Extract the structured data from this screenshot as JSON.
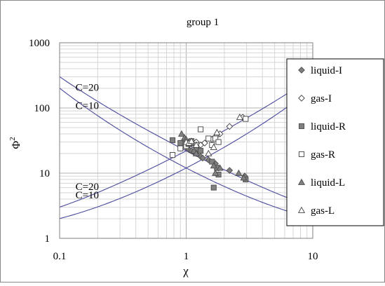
{
  "chart_data": {
    "type": "scatter",
    "title": "group 1",
    "xlabel": "χ",
    "ylabel": "Φ",
    "ylabel_sup": "2",
    "x_scale": "log",
    "y_scale": "log",
    "xlim": [
      0.1,
      10
    ],
    "ylim": [
      1,
      1000
    ],
    "x_ticks": [
      "0.1",
      "1",
      "10"
    ],
    "y_ticks": [
      "1",
      "10",
      "100",
      "1000"
    ],
    "grid": "major and minor (log)",
    "legend_position": "right",
    "curves": [
      {
        "C": 20,
        "label": "C=20",
        "branch": "liquid",
        "formula": "1 + C/χ + 1/χ^2"
      },
      {
        "C": 10,
        "label": "C=10",
        "branch": "liquid",
        "formula": "1 + C/χ + 1/χ^2"
      },
      {
        "C": 20,
        "label": "C=20",
        "branch": "gas",
        "formula": "1 + C·χ + χ^2"
      },
      {
        "C": 10,
        "label": "C=10",
        "branch": "gas",
        "formula": "1 + C·χ + χ^2"
      }
    ],
    "series": [
      {
        "name": "liquid-I",
        "marker": "diamond-filled",
        "points": [
          [
            1.0,
            25
          ],
          [
            1.05,
            23
          ],
          [
            1.1,
            22
          ],
          [
            1.15,
            21
          ],
          [
            1.2,
            20
          ],
          [
            1.3,
            18
          ],
          [
            1.35,
            17
          ],
          [
            1.5,
            16
          ],
          [
            1.7,
            14
          ],
          [
            1.8,
            12
          ],
          [
            2.2,
            11
          ],
          [
            2.9,
            9
          ]
        ]
      },
      {
        "name": "gas-I",
        "marker": "diamond-open",
        "points": [
          [
            1.05,
            27
          ],
          [
            1.1,
            28
          ],
          [
            1.15,
            29
          ],
          [
            1.2,
            30
          ],
          [
            1.3,
            27
          ],
          [
            1.4,
            29
          ],
          [
            1.6,
            33
          ],
          [
            1.75,
            38
          ],
          [
            1.85,
            40
          ],
          [
            2.2,
            52
          ],
          [
            2.8,
            72
          ]
        ]
      },
      {
        "name": "liquid-R",
        "marker": "square-filled",
        "points": [
          [
            0.78,
            32
          ],
          [
            0.9,
            29
          ],
          [
            1.0,
            27
          ],
          [
            1.05,
            30
          ],
          [
            1.1,
            31
          ],
          [
            1.2,
            24
          ],
          [
            1.3,
            22
          ],
          [
            1.6,
            15
          ],
          [
            1.75,
            12
          ],
          [
            1.8,
            9.5
          ],
          [
            1.65,
            6
          ],
          [
            2.95,
            8
          ]
        ]
      },
      {
        "name": "gas-R",
        "marker": "square-open",
        "points": [
          [
            0.78,
            19
          ],
          [
            0.9,
            24
          ],
          [
            1.0,
            26
          ],
          [
            1.05,
            28
          ],
          [
            1.1,
            30
          ],
          [
            1.2,
            27
          ],
          [
            1.3,
            47
          ],
          [
            1.5,
            34
          ],
          [
            1.6,
            27
          ],
          [
            1.7,
            34
          ],
          [
            1.8,
            30
          ],
          [
            2.95,
            68
          ]
        ]
      },
      {
        "name": "liquid-L",
        "marker": "triangle-filled",
        "points": [
          [
            0.92,
            40
          ],
          [
            0.97,
            35
          ],
          [
            1.0,
            33
          ],
          [
            1.05,
            28
          ],
          [
            1.15,
            22
          ],
          [
            1.2,
            20
          ],
          [
            1.65,
            13
          ],
          [
            1.7,
            10
          ],
          [
            1.85,
            12
          ],
          [
            2.6,
            10
          ],
          [
            2.85,
            8.5
          ]
        ]
      },
      {
        "name": "gas-L",
        "marker": "triangle-open",
        "points": [
          [
            1.0,
            30
          ],
          [
            1.05,
            29
          ],
          [
            1.1,
            31
          ],
          [
            1.2,
            27
          ],
          [
            1.5,
            20
          ],
          [
            1.65,
            25
          ],
          [
            1.75,
            42
          ],
          [
            2.65,
            72
          ]
        ]
      }
    ]
  }
}
